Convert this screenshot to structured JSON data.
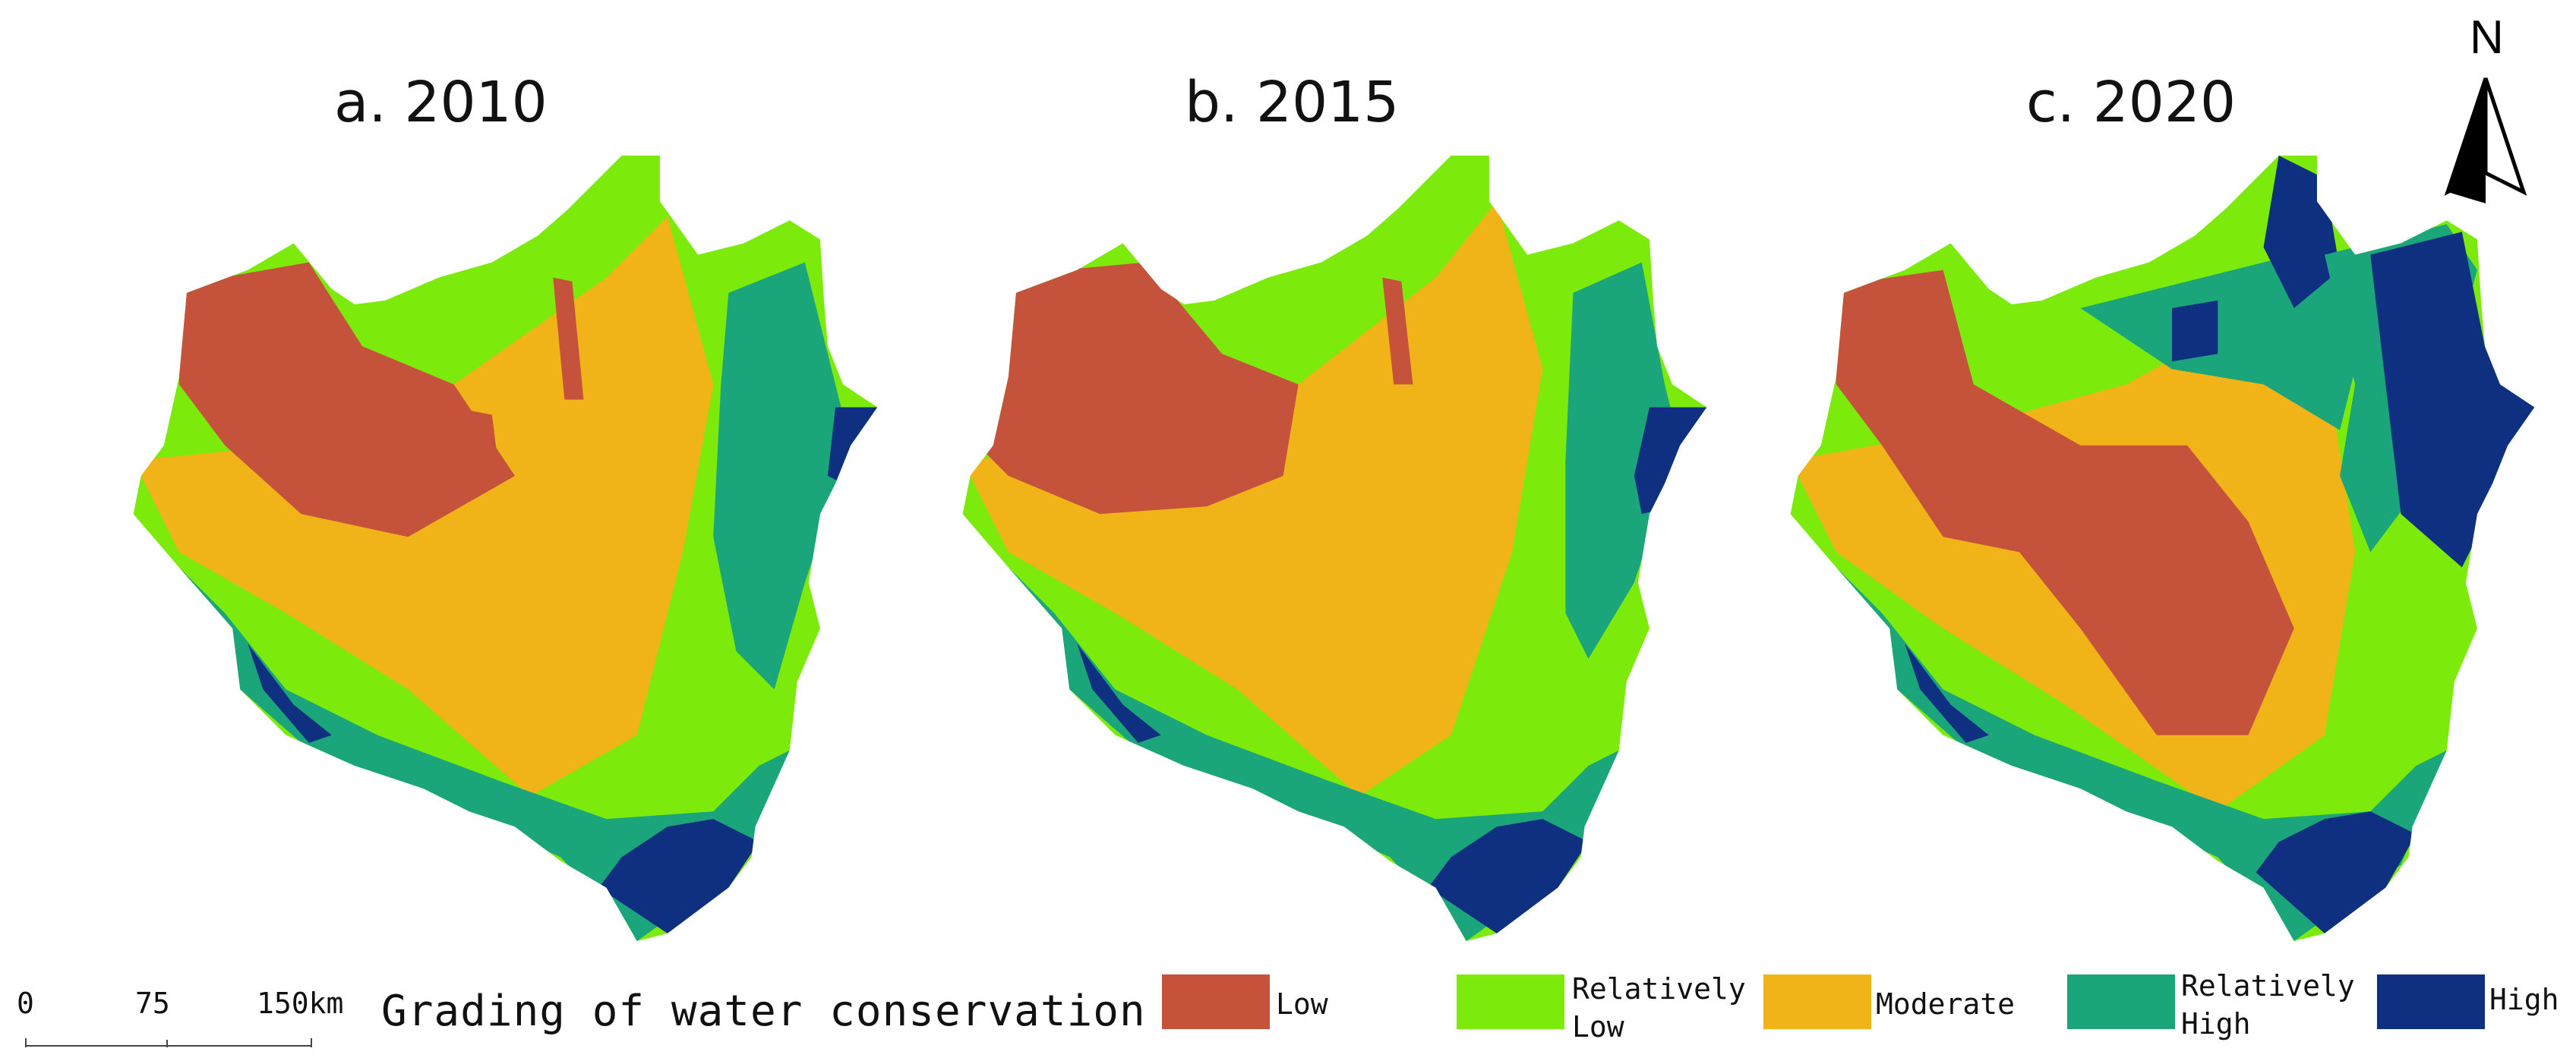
{
  "panels": [
    {
      "id": "a",
      "title": "a. 2010",
      "dominant": [
        "#c5533c",
        "#f0b318",
        "#7ceb0c",
        "#1aa57a",
        "#0f2f80"
      ]
    },
    {
      "id": "b",
      "title": "b. 2015",
      "dominant": [
        "#c5533c",
        "#f0b318",
        "#7ceb0c",
        "#1aa57a",
        "#0f2f80"
      ]
    },
    {
      "id": "c",
      "title": "c. 2020",
      "dominant": [
        "#c5533c",
        "#f0b318",
        "#7ceb0c",
        "#1aa57a",
        "#0f2f80"
      ]
    }
  ],
  "north_arrow": {
    "label": "N",
    "icon": "north-arrow-icon"
  },
  "scale_bar": {
    "ticks": [
      "0",
      "75",
      "150km"
    ]
  },
  "legend": {
    "title": "Grading of water conservation",
    "items": [
      {
        "label": "Low",
        "color": "#c5533c"
      },
      {
        "label": "Relatively\nLow",
        "color": "#7ceb0c"
      },
      {
        "label": "Moderate",
        "color": "#f0b318"
      },
      {
        "label": "Relatively\nHigh",
        "color": "#1aa57a"
      },
      {
        "label": "High",
        "color": "#0f2f80"
      }
    ]
  }
}
